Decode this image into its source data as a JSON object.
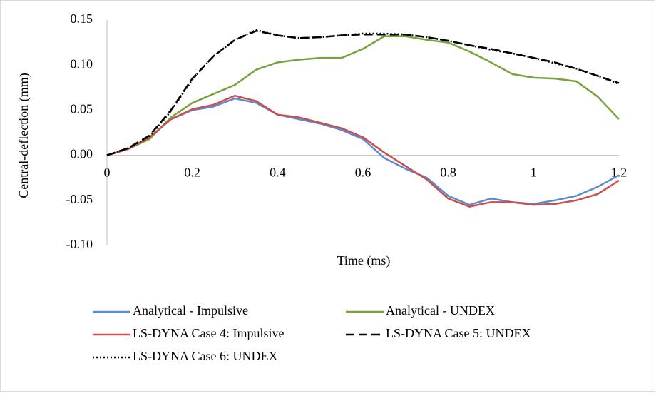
{
  "chart_data": {
    "type": "line",
    "xlabel": "Time (ms)",
    "ylabel": "Central-deflection (mm)",
    "x": [
      0,
      0.05,
      0.1,
      0.15,
      0.2,
      0.25,
      0.3,
      0.35,
      0.4,
      0.45,
      0.5,
      0.55,
      0.6,
      0.65,
      0.7,
      0.75,
      0.8,
      0.85,
      0.9,
      0.95,
      1.0,
      1.05,
      1.1,
      1.15,
      1.2
    ],
    "series": [
      {
        "name": "Analytical - Impulsive",
        "color": "#5b8bd0",
        "line_style": "solid",
        "values": [
          0,
          0.007,
          0.02,
          0.04,
          0.05,
          0.054,
          0.063,
          0.058,
          0.045,
          0.04,
          0.035,
          0.028,
          0.018,
          -0.003,
          -0.015,
          -0.025,
          -0.045,
          -0.055,
          -0.048,
          -0.052,
          -0.054,
          -0.05,
          -0.045,
          -0.035,
          -0.022
        ]
      },
      {
        "name": "Analytical - UNDEX",
        "color": "#77a23c",
        "line_style": "solid",
        "values": [
          0,
          0.007,
          0.018,
          0.042,
          0.058,
          0.068,
          0.078,
          0.095,
          0.103,
          0.106,
          0.108,
          0.108,
          0.118,
          0.132,
          0.132,
          0.128,
          0.125,
          0.115,
          0.103,
          0.09,
          0.086,
          0.085,
          0.082,
          0.065,
          0.04
        ]
      },
      {
        "name": "LS-DYNA Case 4: Impulsive",
        "color": "#c9504d",
        "line_style": "solid",
        "values": [
          0,
          0.007,
          0.02,
          0.04,
          0.051,
          0.056,
          0.066,
          0.06,
          0.045,
          0.042,
          0.036,
          0.03,
          0.02,
          0.003,
          -0.012,
          -0.027,
          -0.048,
          -0.057,
          -0.052,
          -0.052,
          -0.055,
          -0.054,
          -0.05,
          -0.043,
          -0.028
        ]
      },
      {
        "name": "LS-DYNA Case 5: UNDEX",
        "color": "#000000",
        "line_style": "dashed",
        "values": [
          0,
          0.008,
          0.022,
          0.05,
          0.085,
          0.11,
          0.128,
          0.138,
          0.133,
          0.13,
          0.131,
          0.133,
          0.134,
          0.134,
          0.134,
          0.131,
          0.127,
          0.122,
          0.118,
          0.113,
          0.108,
          0.103,
          0.096,
          0.088,
          0.08
        ]
      },
      {
        "name": "LS-DYNA Case 6: UNDEX",
        "color": "#000000",
        "line_style": "dotted",
        "values": [
          0,
          0.008,
          0.021,
          0.049,
          0.084,
          0.11,
          0.128,
          0.139,
          0.133,
          0.13,
          0.131,
          0.133,
          0.135,
          0.135,
          0.134,
          0.131,
          0.127,
          0.122,
          0.117,
          0.113,
          0.108,
          0.102,
          0.096,
          0.088,
          0.079
        ]
      }
    ],
    "xlim": [
      0,
      1.2
    ],
    "xticks": [
      0,
      0.2,
      0.4,
      0.6,
      0.8,
      1,
      1.2
    ],
    "ylim": [
      -0.1,
      0.15
    ],
    "yticks": [
      {
        "value": -0.1,
        "label": "-0.10"
      },
      {
        "value": -0.05,
        "label": "-0.05"
      },
      {
        "value": 0,
        "label": "0.00"
      },
      {
        "value": 0.05,
        "label": "0.05"
      },
      {
        "value": 0.1,
        "label": "0.10"
      },
      {
        "value": 0.15,
        "label": "0.15"
      }
    ],
    "grid": false,
    "legend": "bottom"
  }
}
